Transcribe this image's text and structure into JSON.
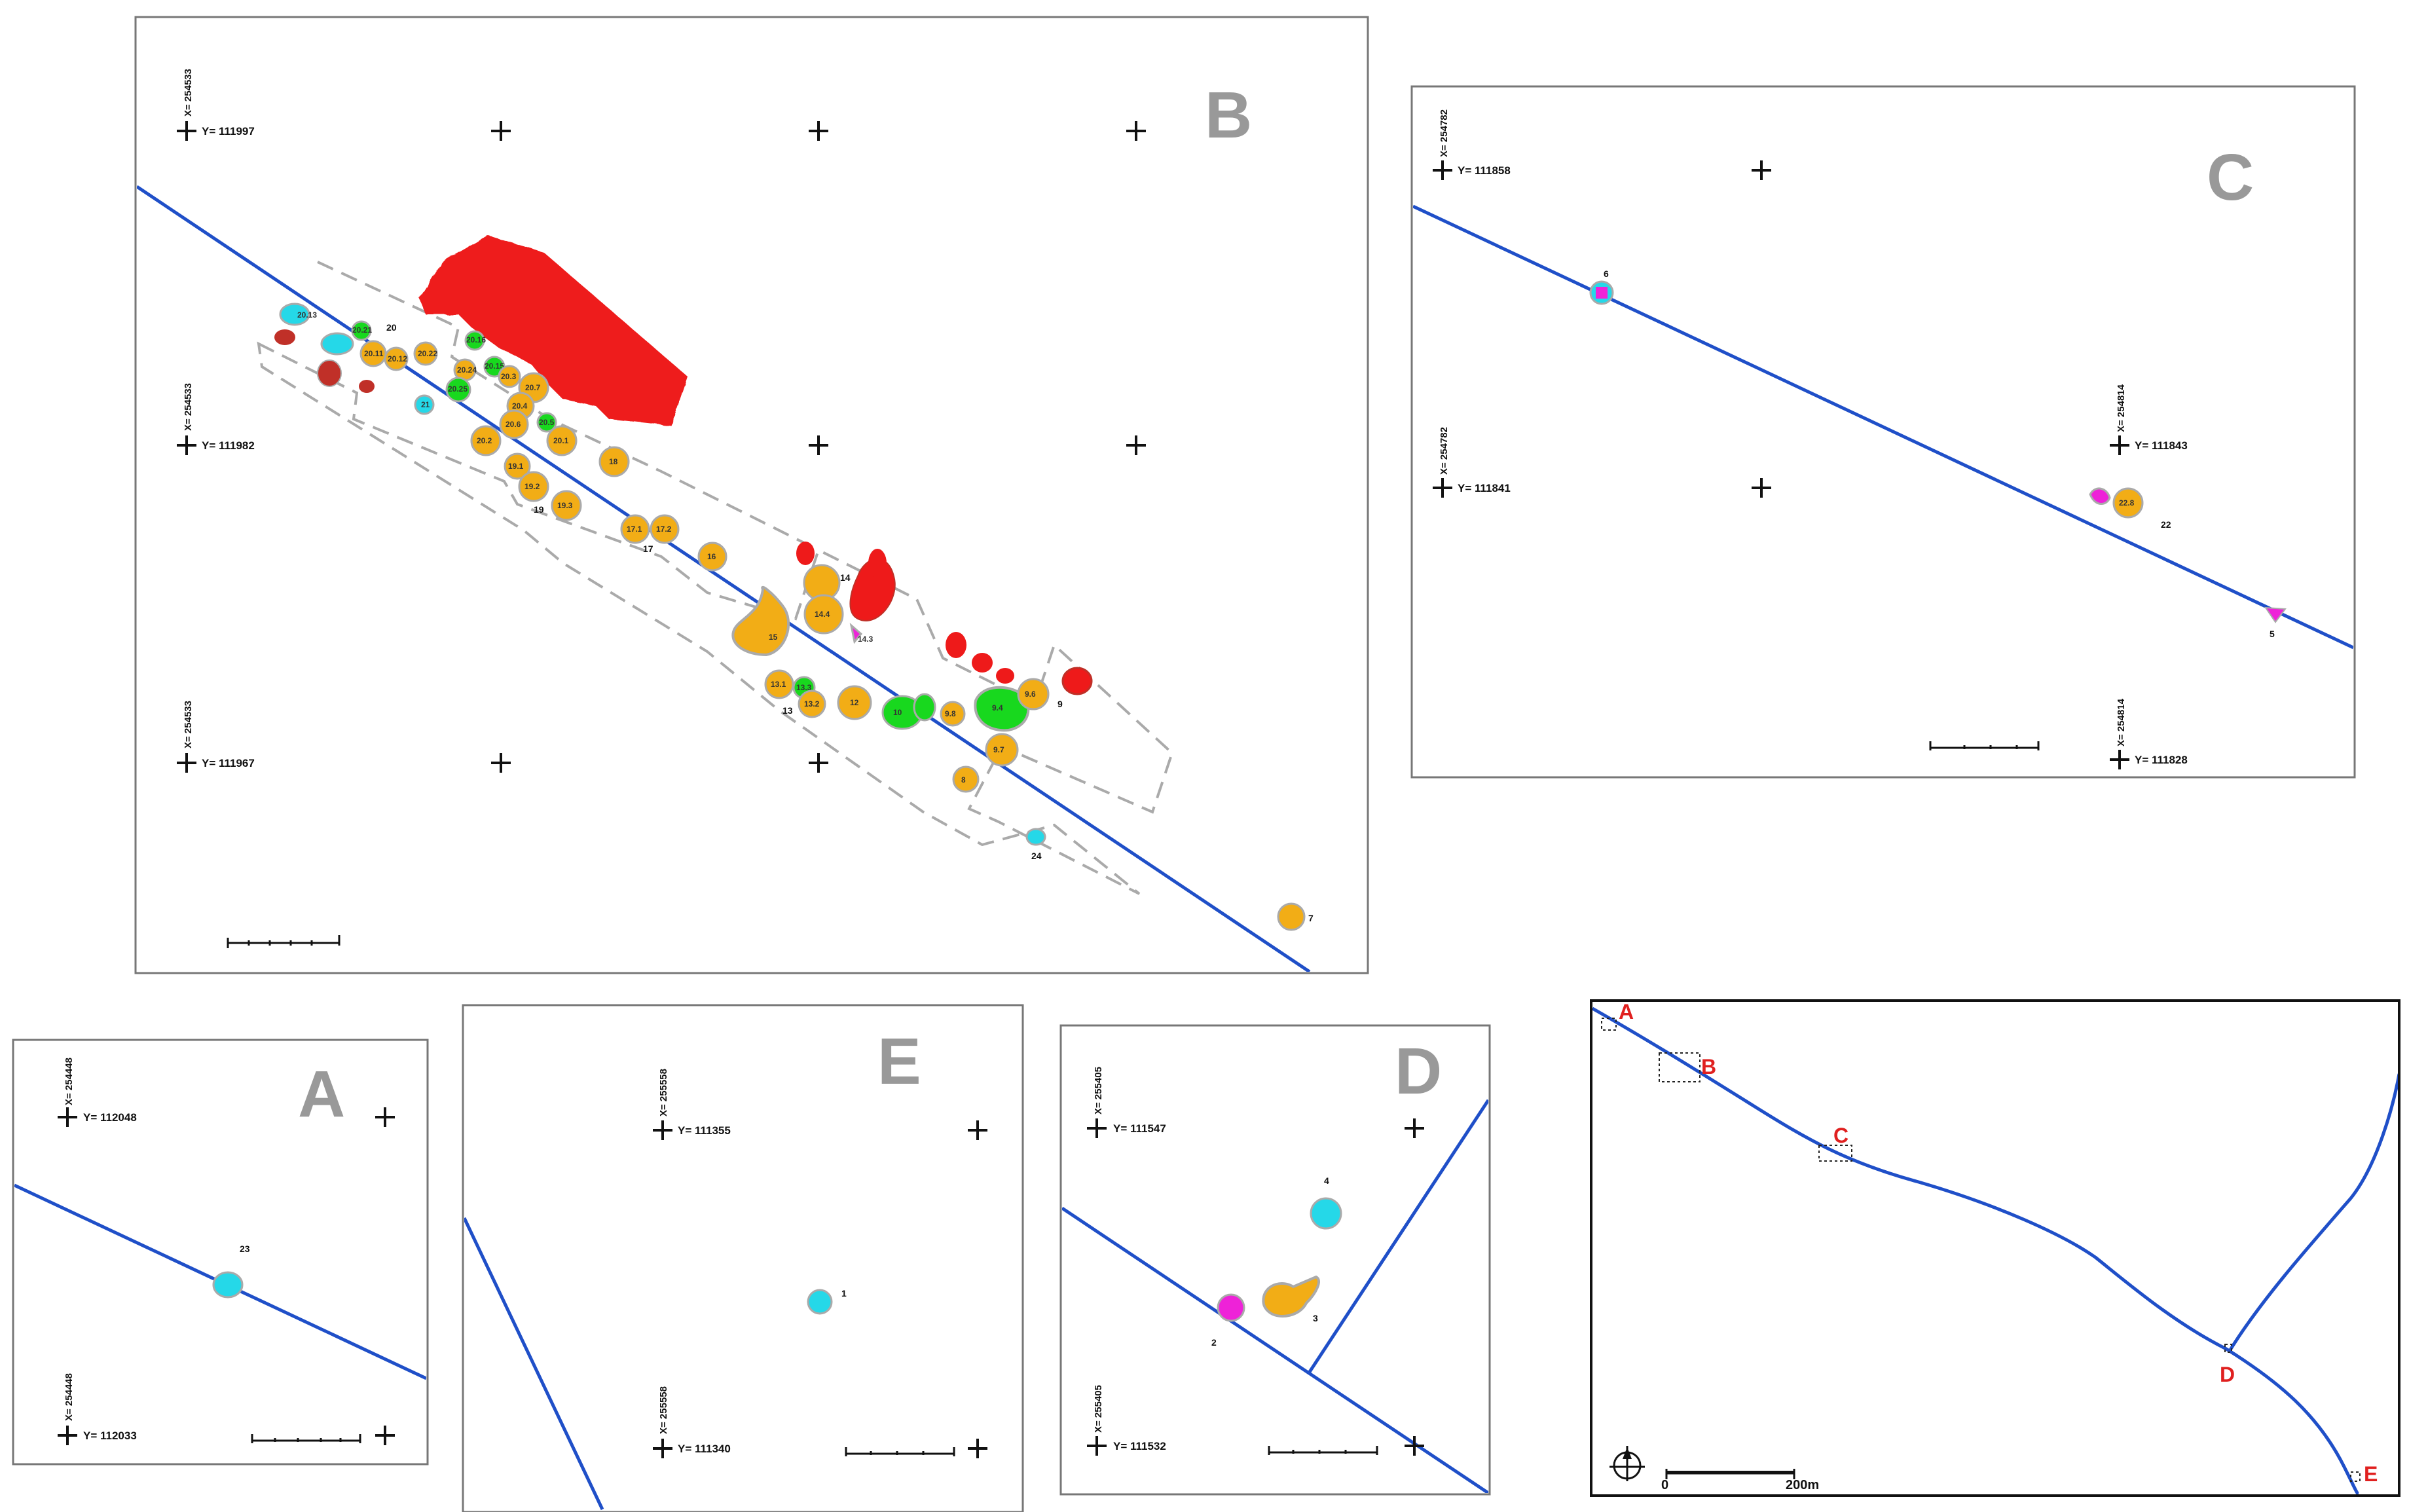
{
  "colors": {
    "road": "#1f4fc8",
    "features": {
      "orange": "#f2ad16",
      "red": "#ee1a1a",
      "darkred": "#c03028",
      "green": "#18d81e",
      "cyan": "#25d8e8",
      "magenta": "#ee22d8",
      "outline": "#aaaaaa"
    },
    "site_label": "#e0201f"
  },
  "panels": {
    "B": {
      "letter": "B",
      "coords": {
        "x_top": "X= 254533",
        "x_mid": "X= 254533",
        "x_bot": "X= 254533",
        "y_top": "Y= 111997",
        "y_mid": "Y= 111982",
        "y_bot": "Y= 111967"
      },
      "labels": [
        "20.13",
        "20.21",
        "20",
        "20.11",
        "20.12",
        "20.22",
        "20.24",
        "20.25",
        "20.16",
        "20.15",
        "20.3",
        "20.7",
        "20.4",
        "20.6",
        "20.1",
        "20.2",
        "20.5",
        "21",
        "19.1",
        "19.2",
        "19.3",
        "19",
        "18",
        "17.1",
        "17.2",
        "17",
        "16",
        "15",
        "14",
        "14.4",
        "14.3",
        "13.1",
        "13.3",
        "13.2",
        "13",
        "12",
        "10",
        "9.8",
        "9.4",
        "9.6",
        "9.7",
        "9",
        "8",
        "24",
        "7"
      ]
    },
    "C": {
      "letter": "C",
      "coords": {
        "x_top": "X= 254782",
        "y_top": "Y= 111858",
        "x_left_mid": "X= 254782",
        "y_left_mid": "Y= 111841",
        "x_right_mid": "X= 254814",
        "y_right_mid": "Y= 111843",
        "x_right_bot": "X= 254814",
        "y_right_bot": "Y= 111828"
      },
      "labels": [
        "6",
        "22.8",
        "22",
        "5"
      ]
    },
    "A": {
      "letter": "A",
      "coords": {
        "x_top": "X= 254448",
        "y_top": "Y= 112048",
        "x_bot": "X= 254448",
        "y_bot": "Y= 112033"
      },
      "labels": [
        "23"
      ]
    },
    "E": {
      "letter": "E",
      "coords": {
        "x_top": "X= 255558",
        "y_top": "Y= 111355",
        "x_bot": "X= 255558",
        "y_bot": "Y= 111340"
      },
      "labels": [
        "1"
      ]
    },
    "D": {
      "letter": "D",
      "coords": {
        "x_top": "X= 255405",
        "y_top": "Y= 111547",
        "x_bot": "X= 255405",
        "y_bot": "Y= 111532"
      },
      "labels": [
        "4",
        "3",
        "2"
      ]
    },
    "overview": {
      "sites": [
        "A",
        "B",
        "C",
        "D",
        "E"
      ],
      "scale": {
        "start": "0",
        "end": "200m"
      },
      "icon": "north-arrow-icon"
    }
  }
}
